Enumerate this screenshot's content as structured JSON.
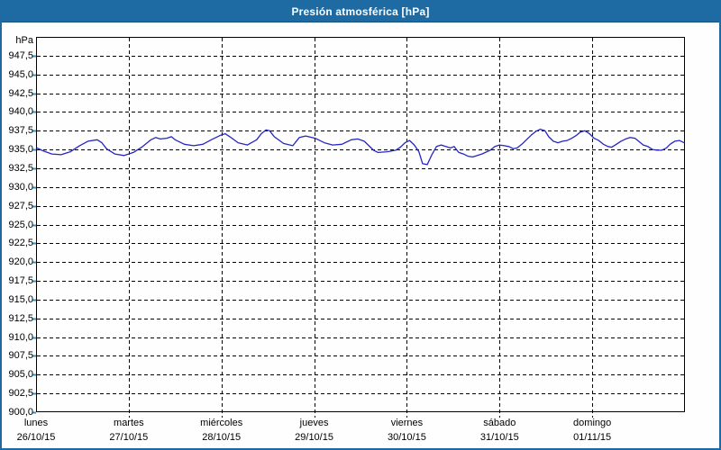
{
  "window": {
    "title": "Presión atmosférica [hPa]"
  },
  "colors": {
    "titlebar_bg": "#1e6ba3",
    "window_border": "#1e6ba3",
    "line_color": "#2626c4",
    "grid_color": "#000000",
    "tick_color": "#2f96c8",
    "background": "#fdfefd"
  },
  "chart_data": {
    "type": "line",
    "title": "Presión atmosférica [hPa]",
    "unit_label": "hPa",
    "grid": "dashed",
    "legend": "none",
    "y_axis": {
      "min": 900,
      "max": 950,
      "tick_step": 2.5,
      "ticks": [
        {
          "label": "947,5",
          "value": 947.5
        },
        {
          "label": "945,0",
          "value": 945.0
        },
        {
          "label": "942,5",
          "value": 942.5
        },
        {
          "label": "940,0",
          "value": 940.0
        },
        {
          "label": "937,5",
          "value": 937.5
        },
        {
          "label": "935,0",
          "value": 935.0
        },
        {
          "label": "932,5",
          "value": 932.5
        },
        {
          "label": "930,0",
          "value": 930.0
        },
        {
          "label": "927,5",
          "value": 927.5
        },
        {
          "label": "925,0",
          "value": 925.0
        },
        {
          "label": "922,5",
          "value": 922.5
        },
        {
          "label": "920,0",
          "value": 920.0
        },
        {
          "label": "917,5",
          "value": 917.5
        },
        {
          "label": "915,0",
          "value": 915.0
        },
        {
          "label": "912,5",
          "value": 912.5
        },
        {
          "label": "910,0",
          "value": 910.0
        },
        {
          "label": "907,5",
          "value": 907.5
        },
        {
          "label": "905,0",
          "value": 905.0
        },
        {
          "label": "902,5",
          "value": 902.5
        },
        {
          "label": "900,0",
          "value": 900.0
        }
      ]
    },
    "x_axis": {
      "range_days": [
        0,
        7
      ],
      "tick_labels": [
        {
          "day": "lunes",
          "date": "26/10/15"
        },
        {
          "day": "martes",
          "date": "27/10/15"
        },
        {
          "day": "miércoles",
          "date": "28/10/15"
        },
        {
          "day": "jueves",
          "date": "29/10/15"
        },
        {
          "day": "viernes",
          "date": "30/10/15"
        },
        {
          "day": "sábado",
          "date": "31/10/15"
        },
        {
          "day": "domingo",
          "date": "01/11/15"
        }
      ]
    },
    "series": [
      {
        "name": "Presión atmosférica",
        "unit": "hPa",
        "x_days": [
          0.01,
          0.08,
          0.17,
          0.27,
          0.37,
          0.47,
          0.56,
          0.66,
          0.71,
          0.76,
          0.85,
          0.95,
          1.05,
          1.15,
          1.24,
          1.29,
          1.34,
          1.41,
          1.46,
          1.5,
          1.6,
          1.7,
          1.8,
          1.89,
          1.99,
          2.04,
          2.09,
          2.18,
          2.28,
          2.38,
          2.43,
          2.48,
          2.52,
          2.57,
          2.67,
          2.77,
          2.84,
          2.91,
          3.01,
          3.11,
          3.2,
          3.3,
          3.4,
          3.47,
          3.54,
          3.59,
          3.64,
          3.69,
          3.79,
          3.88,
          3.93,
          3.98,
          4.03,
          4.08,
          4.13,
          4.17,
          4.22,
          4.27,
          4.32,
          4.37,
          4.42,
          4.47,
          4.51,
          4.56,
          4.61,
          4.66,
          4.71,
          4.81,
          4.9,
          4.95,
          5.0,
          5.05,
          5.1,
          5.15,
          5.19,
          5.24,
          5.29,
          5.34,
          5.39,
          5.44,
          5.49,
          5.53,
          5.58,
          5.63,
          5.68,
          5.73,
          5.78,
          5.83,
          5.87,
          5.92,
          5.97,
          6.02,
          6.07,
          6.12,
          6.17,
          6.21,
          6.26,
          6.31,
          6.36,
          6.41,
          6.46,
          6.5,
          6.55,
          6.6,
          6.65,
          6.7,
          6.75,
          6.8,
          6.84,
          6.89,
          6.94,
          6.99
        ],
        "values": [
          935.2,
          934.8,
          934.4,
          934.3,
          934.7,
          935.5,
          936.1,
          936.3,
          935.9,
          935.1,
          934.4,
          934.2,
          934.6,
          935.4,
          936.3,
          936.6,
          936.4,
          936.5,
          936.7,
          936.3,
          935.7,
          935.5,
          935.7,
          936.3,
          936.9,
          937.1,
          936.7,
          935.9,
          935.6,
          936.3,
          937.1,
          937.6,
          937.5,
          936.7,
          935.8,
          935.5,
          936.6,
          936.8,
          936.5,
          935.9,
          935.6,
          935.7,
          936.3,
          936.4,
          936.1,
          935.5,
          934.9,
          934.6,
          934.7,
          934.9,
          935.3,
          935.9,
          936.2,
          935.6,
          934.7,
          933.1,
          933.0,
          934.3,
          935.4,
          935.6,
          935.4,
          935.2,
          935.4,
          934.6,
          934.4,
          934.1,
          934.0,
          934.4,
          934.9,
          935.4,
          935.6,
          935.5,
          935.4,
          935.1,
          935.2,
          935.7,
          936.3,
          936.9,
          937.4,
          937.7,
          937.5,
          936.7,
          936.1,
          935.9,
          936.1,
          936.2,
          936.5,
          936.9,
          937.3,
          937.5,
          937.1,
          936.5,
          936.2,
          935.7,
          935.4,
          935.3,
          935.7,
          936.1,
          936.4,
          936.6,
          936.5,
          936.1,
          935.6,
          935.4,
          935.0,
          934.9,
          934.9,
          935.2,
          935.7,
          936.1,
          936.2,
          935.9
        ]
      }
    ]
  }
}
